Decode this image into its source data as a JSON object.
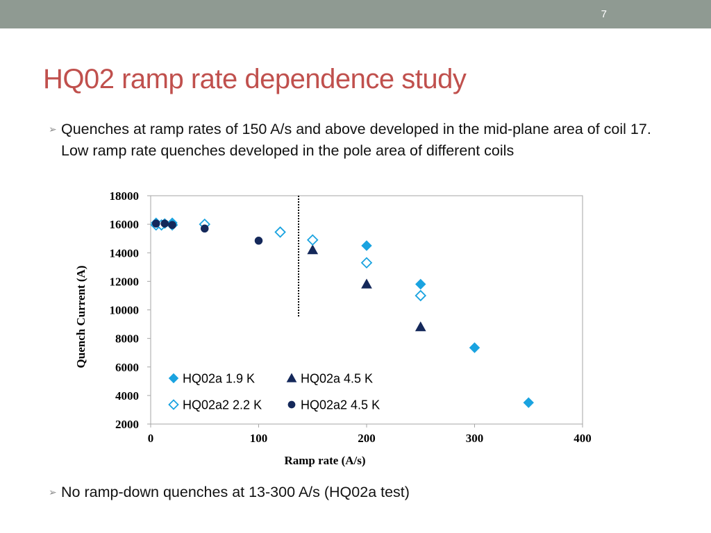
{
  "slide_number": "7",
  "title": "HQ02 ramp rate dependence study",
  "bullets": [
    "Quenches at ramp rates of 150 A/s and above developed in the mid-plane area of coil 17. Low ramp rate quenches developed in the pole area of different coils",
    "No ramp-down quenches at 13-300 A/s (HQ02a test)"
  ],
  "colors": {
    "topbar": "#8f9a92",
    "title": "#c0504d",
    "light_blue": "#1aa3e0",
    "navy": "#14285a"
  },
  "chart_data": {
    "type": "scatter",
    "xlabel": "Ramp rate (A/s)",
    "ylabel": "Quench Current (A)",
    "xlim": [
      0,
      400
    ],
    "ylim": [
      2000,
      18000
    ],
    "xticks": [
      "0",
      "100",
      "200",
      "300",
      "400"
    ],
    "yticks": [
      "2000",
      "4000",
      "6000",
      "8000",
      "10000",
      "12000",
      "14000",
      "16000",
      "18000"
    ],
    "grid": false,
    "legend_position": "bottom-left",
    "annotations": [
      {
        "type": "dotted-vertical-line",
        "x": 137,
        "y_range": [
          9500,
          18000
        ]
      }
    ],
    "series": [
      {
        "name": "HQ02a 1.9 K",
        "marker": "diamond-filled",
        "color": "#1aa3e0",
        "points": [
          [
            5,
            16100
          ],
          [
            13,
            16050
          ],
          [
            20,
            16100
          ],
          [
            200,
            14500
          ],
          [
            250,
            11800
          ],
          [
            300,
            7350
          ],
          [
            350,
            3500
          ]
        ]
      },
      {
        "name": "HQ02a 4.5 K",
        "marker": "triangle-filled",
        "color": "#14285a",
        "points": [
          [
            150,
            14200
          ],
          [
            200,
            11800
          ],
          [
            250,
            8800
          ]
        ]
      },
      {
        "name": "HQ02a2 2.2 K",
        "marker": "diamond-open",
        "color": "#1aa3e0",
        "points": [
          [
            5,
            15950
          ],
          [
            10,
            15950
          ],
          [
            20,
            15950
          ],
          [
            50,
            16000
          ],
          [
            120,
            15450
          ],
          [
            150,
            14900
          ],
          [
            200,
            13300
          ],
          [
            250,
            11000
          ]
        ]
      },
      {
        "name": "HQ02a2 4.5 K",
        "marker": "circle-filled",
        "color": "#14285a",
        "points": [
          [
            5,
            16050
          ],
          [
            13,
            16050
          ],
          [
            20,
            15950
          ],
          [
            50,
            15700
          ],
          [
            100,
            14850
          ]
        ]
      }
    ]
  }
}
